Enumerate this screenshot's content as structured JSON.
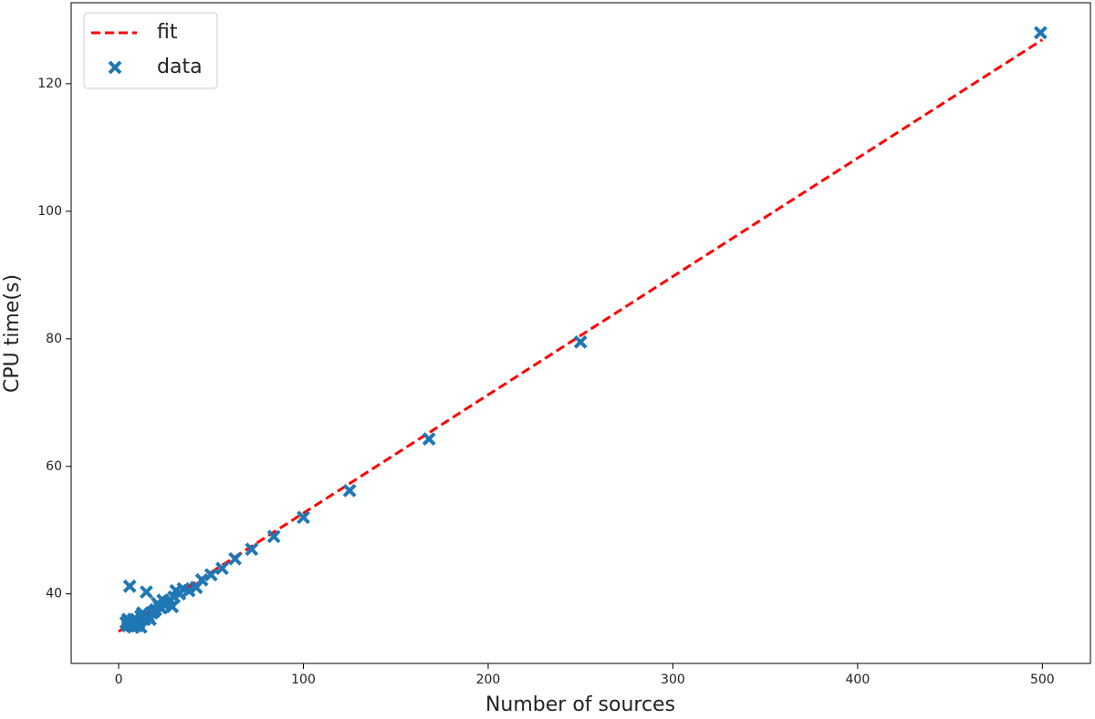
{
  "chart_data": {
    "type": "scatter",
    "x_label": "Number of sources",
    "y_label": "CPU time(s)",
    "xlim": [
      -25.7,
      526
    ],
    "ylim": [
      29.1,
      132.7
    ],
    "xticks": [
      0,
      100,
      200,
      300,
      400,
      500
    ],
    "yticks": [
      40,
      60,
      80,
      100,
      120
    ],
    "legend": "upper left",
    "series": [
      {
        "name": "fit",
        "color": "#ff0000",
        "line_style": "dashed",
        "x": [
          0,
          500
        ],
        "values": [
          34.1,
          126.9
        ]
      },
      {
        "name": "data",
        "color": "#1f77b4",
        "marker": "x",
        "x": [
          499,
          250,
          168,
          125,
          100,
          84,
          72,
          63,
          56,
          50,
          45,
          42,
          38,
          35,
          31,
          28,
          26,
          24,
          22,
          20,
          18,
          16,
          15,
          14,
          12,
          11,
          10,
          9,
          8,
          7,
          6,
          6,
          5,
          5,
          4,
          13,
          17,
          19,
          21,
          23,
          25,
          27,
          29,
          30,
          33,
          12,
          8
        ],
        "values": [
          128,
          79.5,
          64.3,
          56.2,
          52,
          49,
          47,
          45.5,
          44,
          43,
          42.2,
          41,
          40.5,
          40.8,
          40.5,
          39,
          38.5,
          39,
          38,
          37.5,
          37,
          36.5,
          40.3,
          36,
          36.5,
          35.5,
          35,
          35.5,
          36,
          35,
          41.2,
          35.5,
          36,
          35,
          35.5,
          37,
          36,
          37.2,
          38.5,
          37.8,
          38.2,
          38.8,
          38,
          39.5,
          40,
          34.8,
          34.8
        ]
      }
    ]
  }
}
